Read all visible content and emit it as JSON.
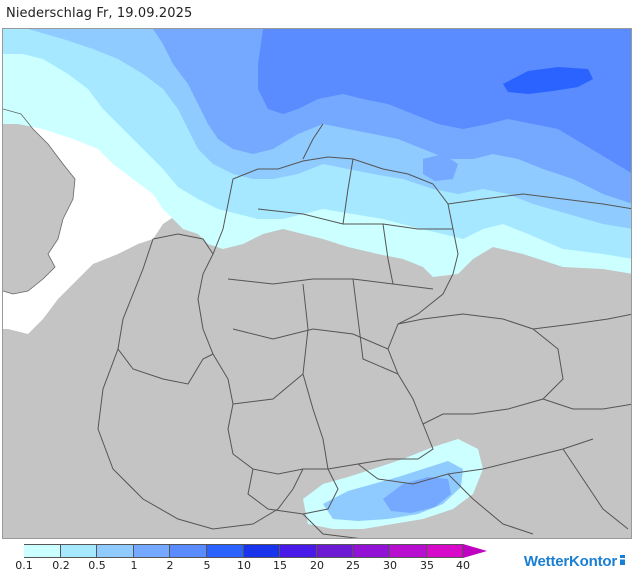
{
  "title": "Niederschlag Fr, 19.09.2025",
  "legend": {
    "labels": [
      "0.1",
      "0.2",
      "0.5",
      "1",
      "2",
      "5",
      "10",
      "15",
      "20",
      "25",
      "30",
      "35",
      "40"
    ],
    "colors": [
      "#ccffff",
      "#a6e8ff",
      "#8fcbff",
      "#74a9ff",
      "#5a8bff",
      "#2a63ff",
      "#1a34ee",
      "#4a1ae8",
      "#6c1ad4",
      "#9212d6",
      "#b80ed0",
      "#d60ac8",
      "#e010d8"
    ],
    "below_color": "#ffffff",
    "above_color": "#c000c0"
  },
  "logo": {
    "text": "WetterKontor"
  },
  "map": {
    "land_color": "#c4c4c4",
    "sea_color": "#ffffff",
    "border_color": "#555555",
    "precip_levels": {
      "0.1": "#ccffff",
      "0.2": "#a6e8ff",
      "0.5": "#8fcbff",
      "1": "#74a9ff",
      "2": "#5a8bff",
      "5": "#2a63ff"
    }
  }
}
